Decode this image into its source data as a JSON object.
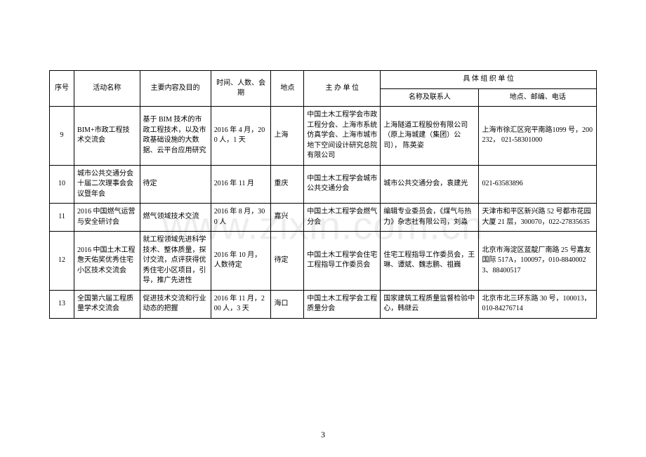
{
  "table": {
    "col_widths_pct": [
      4.5,
      12,
      13,
      11,
      6,
      14,
      18,
      21.5
    ],
    "header": {
      "seq": "序号",
      "activity": "活动名称",
      "content": "主要内容及目的",
      "time": "时间、人数、会期",
      "place": "地点",
      "host": "主 办 单 位",
      "org_group": "具 体 组 织 单 位",
      "org_name": "名称及联系人",
      "org_addr": "地点、邮编、电话"
    },
    "rows": [
      {
        "seq": "9",
        "activity": "BIM+市政工程技术交流会",
        "content": "基于 BIM 技术的市政工程技术，以及市政基础设施的大数据、云平台应用研究",
        "time": "2016 年 4 月，200 人，1 天",
        "place": "上海",
        "host": "中国土木工程学会市政工程分会、上海市系统仿真学会、上海市城市地下空间设计研究总院有限公司",
        "org_name": "上海隧道工程股份有限公司（原上海城建（集团）公司），\n陈英姿",
        "org_addr": "上海市徐汇区宛平南路1099 号，200232，\n021-58301000"
      },
      {
        "seq": "10",
        "activity": "城市公共交通分会十届二次理事会会议暨年会",
        "content": "待定",
        "time": "2016 年 11 月",
        "place": "重庆",
        "host": "中国土木工程学会城市公共交通分会",
        "org_name": "城市公共交通分会，袁建光",
        "org_addr": "021-63583896"
      },
      {
        "seq": "11",
        "activity": "2016 中国燃气运营与安全研讨会",
        "content": "燃气领域技术交流",
        "time": "2016 年 8 月，300 人",
        "place": "嘉兴",
        "host": "中国土木工程学会燃气分会",
        "org_name": "编辑专业委员会，《煤气与热力》杂志社有限公司，刘淼",
        "org_addr": "天津市和平区新兴路 52 号都市花园大厦 21 层，300070，022-27835635"
      },
      {
        "seq": "12",
        "activity": "2016 中国土木工程詹天佑奖优秀住宅小区技术交流会",
        "content": "就工程领域先进科学技术、整体质量，探讨交流，点评获得优秀住宅小区项目，引导，推广先进性",
        "time": "2016 年 10 月，人数待定",
        "place": "待定",
        "host": "中国土木工程学会住宅工程指导工作委员会",
        "org_name": "住宅工程指导工作委员会，王琳、谭斌、魏志鹏、祖巍",
        "org_addr": "北京市海淀区蓝靛厂南路 25 号嘉友国际 517A，100097，010-88400023、88400517"
      },
      {
        "seq": "13",
        "activity": "全国第六届工程质量学术交流会",
        "content": "促进技术交流和行业动态的把握",
        "time": "2016 年 11 月，200 人，3 天",
        "place": "海口",
        "host": "中国土木工程学会工程质量分会",
        "org_name": "国家建筑工程质量监督检验中心，韩继云",
        "org_addr": "北京市北三环东路 30 号，100013，010-84276714"
      }
    ]
  },
  "page_number": "3",
  "watermark": "www.zixin.com.cn"
}
